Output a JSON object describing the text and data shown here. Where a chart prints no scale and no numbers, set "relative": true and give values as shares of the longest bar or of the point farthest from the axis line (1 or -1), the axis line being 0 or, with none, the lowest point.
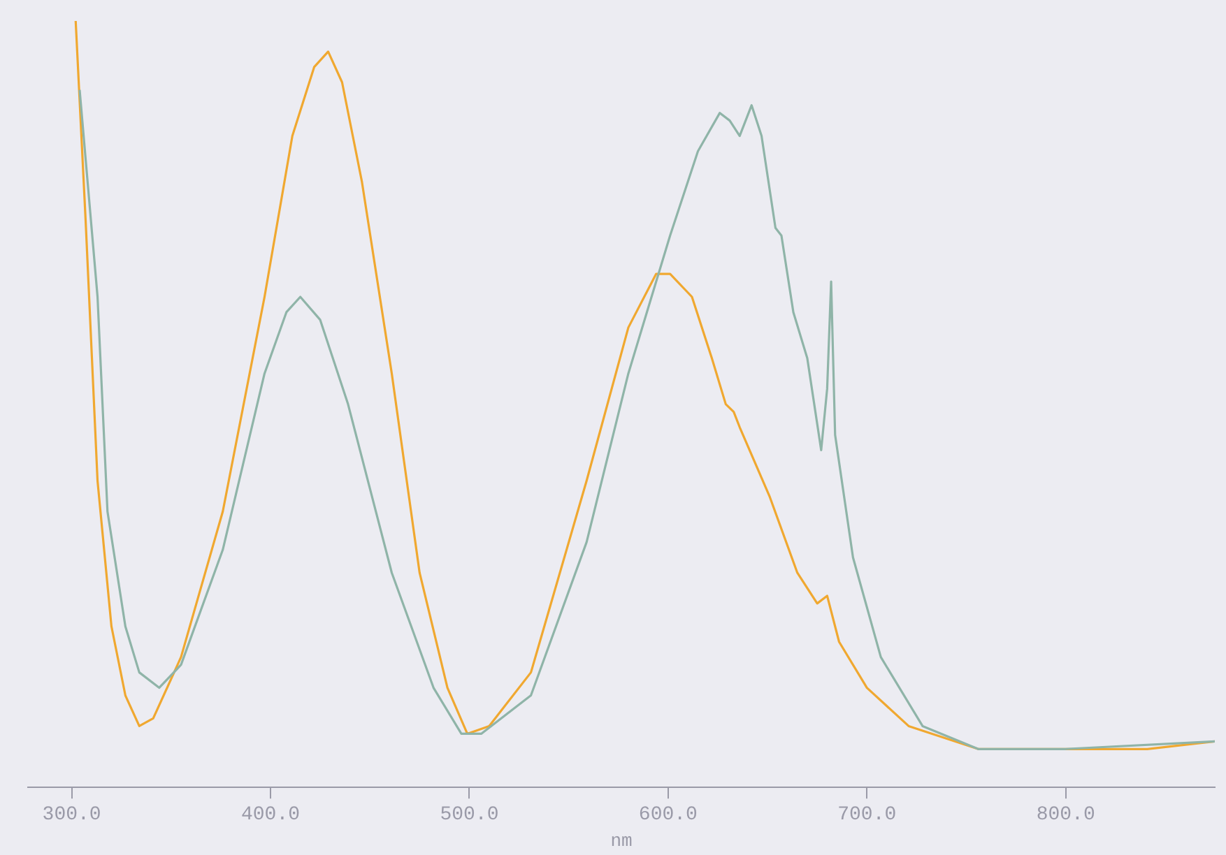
{
  "chart_data": {
    "type": "line",
    "xlabel": "nm",
    "relative": true,
    "grid": false,
    "legend": false,
    "marker": "none",
    "line_style": "solid",
    "xlim": [
      278,
      875
    ],
    "xticks": [
      {
        "value": 300,
        "label": "300.0"
      },
      {
        "value": 400,
        "label": "400.0"
      },
      {
        "value": 500,
        "label": "500.0"
      },
      {
        "value": 600,
        "label": "600.0"
      },
      {
        "value": 700,
        "label": "700.0"
      },
      {
        "value": 800,
        "label": "800.0"
      }
    ],
    "series": [
      {
        "color": "#8fb4a8",
        "x": [
          304,
          313,
          318,
          327,
          334,
          344,
          355,
          376,
          397,
          408,
          415,
          425,
          439,
          461,
          482,
          496,
          506,
          531,
          559,
          580,
          601,
          615,
          626,
          631,
          636,
          642,
          647,
          654,
          657,
          663,
          670,
          677,
          680,
          682,
          684,
          693,
          707,
          728,
          756,
          799,
          875
        ],
        "values": [
          0.91,
          0.64,
          0.36,
          0.21,
          0.15,
          0.13,
          0.16,
          0.31,
          0.54,
          0.62,
          0.64,
          0.61,
          0.5,
          0.28,
          0.13,
          0.07,
          0.07,
          0.12,
          0.32,
          0.54,
          0.72,
          0.83,
          0.88,
          0.87,
          0.85,
          0.89,
          0.85,
          0.73,
          0.72,
          0.62,
          0.56,
          0.44,
          0.52,
          0.66,
          0.46,
          0.3,
          0.17,
          0.08,
          0.05,
          0.05,
          0.06
        ]
      },
      {
        "color": "#f0a830",
        "x": [
          302,
          307,
          313,
          320,
          327,
          334,
          341,
          355,
          376,
          397,
          411,
          422,
          429,
          436,
          446,
          461,
          475,
          489,
          499,
          510,
          531,
          559,
          580,
          594,
          601,
          612,
          622,
          629,
          633,
          636,
          651,
          665,
          675,
          680,
          686,
          700,
          721,
          756,
          799,
          841,
          875
        ],
        "values": [
          1,
          0.74,
          0.4,
          0.21,
          0.12,
          0.08,
          0.09,
          0.17,
          0.36,
          0.64,
          0.85,
          0.94,
          0.96,
          0.92,
          0.79,
          0.54,
          0.28,
          0.13,
          0.07,
          0.08,
          0.15,
          0.4,
          0.6,
          0.67,
          0.67,
          0.64,
          0.56,
          0.5,
          0.49,
          0.47,
          0.38,
          0.28,
          0.24,
          0.25,
          0.19,
          0.13,
          0.08,
          0.05,
          0.05,
          0.05,
          0.06
        ]
      }
    ]
  }
}
